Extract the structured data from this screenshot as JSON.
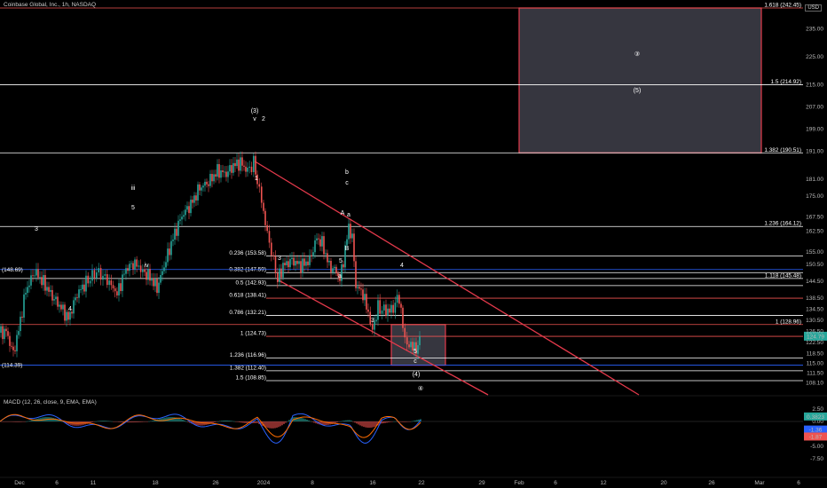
{
  "header": {
    "title": "Coinbase Global, Inc., 1h, NASDAQ",
    "currency": "USD"
  },
  "macd_label": "MACD (12, 26, close, 9, EMA, EMA)",
  "colors": {
    "background": "#000000",
    "up": "#26a69a",
    "down": "#ef5350",
    "trendline": "#e3394b",
    "level_line": "#ffffff",
    "blue_line": "#2962ff",
    "box_fill": "#3c3c46",
    "macd_line": "#2962ff",
    "signal_line": "#ff6d00"
  },
  "chart_data": [
    {
      "type": "candlestick",
      "title": "Coinbase Global, Inc., 1h, NASDAQ",
      "ylim": [
        105,
        245
      ],
      "y_ticks": [
        "235.00",
        "225.00",
        "215.00",
        "207.00",
        "199.00",
        "191.00",
        "181.00",
        "175.00",
        "167.50",
        "162.50",
        "155.00",
        "150.50",
        "144.50",
        "138.50",
        "134.50",
        "130.50",
        "126.50",
        "122.50",
        "118.50",
        "115.00",
        "111.50",
        "108.10"
      ],
      "x_ticks": [
        "Dec",
        "6",
        "11",
        "18",
        "26",
        "2024",
        "8",
        "16",
        "22",
        "29",
        "Feb",
        "6",
        "12",
        "20",
        "26",
        "Mar",
        "6"
      ],
      "price_path": [
        [
          0,
          126
        ],
        [
          8,
          126.5
        ],
        [
          16,
          118.5
        ],
        [
          22,
          127
        ],
        [
          30,
          141
        ],
        [
          40,
          148
        ],
        [
          50,
          144
        ],
        [
          60,
          139
        ],
        [
          70,
          135
        ],
        [
          78,
          131
        ],
        [
          88,
          140
        ],
        [
          98,
          144
        ],
        [
          110,
          148
        ],
        [
          122,
          145
        ],
        [
          133,
          140
        ],
        [
          143,
          149
        ],
        [
          153,
          151
        ],
        [
          162,
          148
        ],
        [
          170,
          146
        ],
        [
          178,
          142
        ],
        [
          186,
          150
        ],
        [
          196,
          160
        ],
        [
          206,
          168
        ],
        [
          216,
          172
        ],
        [
          226,
          178
        ],
        [
          236,
          180
        ],
        [
          246,
          184
        ],
        [
          256,
          183
        ],
        [
          264,
          186
        ],
        [
          272,
          187
        ],
        [
          280,
          184
        ],
        [
          287,
          187
        ],
        [
          291,
          180
        ],
        [
          296,
          174
        ],
        [
          300,
          165
        ],
        [
          307,
          155
        ],
        [
          314,
          145
        ],
        [
          320,
          150
        ],
        [
          330,
          152
        ],
        [
          340,
          150
        ],
        [
          350,
          152
        ],
        [
          358,
          160
        ],
        [
          364,
          158
        ],
        [
          372,
          150
        ],
        [
          380,
          148
        ],
        [
          384,
          145
        ],
        [
          388,
          152
        ],
        [
          394,
          164
        ],
        [
          398,
          160
        ],
        [
          402,
          143
        ],
        [
          410,
          140
        ],
        [
          416,
          133
        ],
        [
          421,
          127
        ],
        [
          427,
          135
        ],
        [
          434,
          134
        ],
        [
          442,
          134
        ],
        [
          451,
          139
        ],
        [
          455,
          128
        ],
        [
          460,
          121
        ],
        [
          466,
          122
        ],
        [
          470,
          119
        ],
        [
          474,
          125
        ]
      ],
      "levels": [
        {
          "label": "1.618 (242.45)",
          "value": 242.45,
          "color": "#ef5350"
        },
        {
          "label": "1.5 (214.92)",
          "value": 214.92,
          "color": "#ffffff"
        },
        {
          "label": "1.382 (190.51)",
          "value": 190.51,
          "color": "#ffffff"
        },
        {
          "label": "1.236 (164.12)",
          "value": 164.12,
          "color": "#ffffff"
        },
        {
          "label": "0.236 (153.58)",
          "value": 153.58,
          "color": "#ffffff"
        },
        {
          "label": "0.382 (147.59)",
          "value": 147.59,
          "color": "#ffffff"
        },
        {
          "label": "1.118 (145.48)",
          "value": 145.48,
          "color": "#ffffff"
        },
        {
          "label": "0.5 (142.93)",
          "value": 142.93,
          "color": "#ffffff"
        },
        {
          "label": "0.618 (138.41)",
          "value": 138.41,
          "color": "#ef5350"
        },
        {
          "label": "0.786 (132.21)",
          "value": 132.21,
          "color": "#ffffff"
        },
        {
          "label": "1 (128.96)",
          "value": 128.96,
          "color": "#ef5350"
        },
        {
          "label": "1 (124.73)",
          "value": 124.73,
          "color": "#ef5350"
        },
        {
          "label": "1.236 (116.96)",
          "value": 116.96,
          "color": "#ffffff"
        },
        {
          "label": "1.382 (112.40)",
          "value": 112.4,
          "color": "#ffffff"
        },
        {
          "label": "1.5 (108.85)",
          "value": 108.85,
          "color": "#ffffff"
        }
      ],
      "blue_levels": [
        {
          "label": "(148.69)",
          "value": 148.69
        },
        {
          "label": "(114.39)",
          "value": 114.39
        }
      ],
      "price_badges": [
        {
          "label": "124.79",
          "value": 124.79
        }
      ],
      "wave_labels": [
        "(3)",
        "v",
        "2",
        "iii",
        "3",
        "5",
        "iv",
        "4",
        "1",
        "3",
        "5",
        "b",
        "c",
        "a",
        "A",
        "B",
        "a",
        "4",
        "3",
        "5",
        "c",
        "(4)",
        "③",
        "(5)",
        "④"
      ]
    },
    {
      "type": "macd",
      "title": "MACD (12, 26, close, 9, EMA, EMA)",
      "ylim": [
        -9,
        4
      ],
      "y_ticks": [
        "2.50",
        "0.00",
        "-2.50",
        "-5.00",
        "-7.50"
      ],
      "value_badges": [
        "0.3823",
        "-1.36",
        "-1.87"
      ]
    }
  ]
}
